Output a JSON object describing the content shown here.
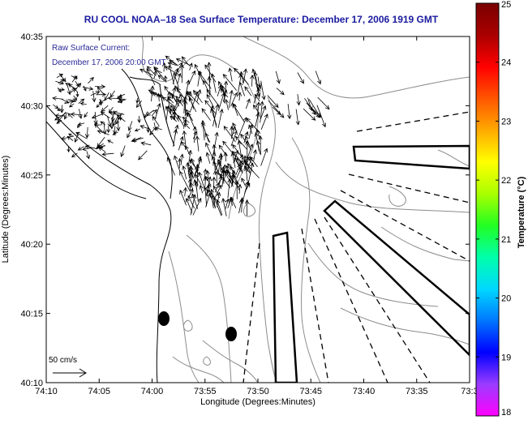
{
  "title": "RU COOL  NOAA–18  Sea Surface Temperature:  December 17, 2006 1919 GMT",
  "annotations": {
    "current_label_line1": "Raw Surface Current:",
    "current_label_line2": "December 17, 2006 20:00 GMT",
    "scale_label": "50 cm/s"
  },
  "axes": {
    "xlabel": "Longitude (Degrees:Minutes)",
    "ylabel": "Latitude (Degrees:Minutes)",
    "x_ticks": [
      "74:10",
      "74:05",
      "74:00",
      "73:55",
      "73:50",
      "73:45",
      "73:40",
      "73:35",
      "73:3"
    ],
    "y_ticks": [
      "40:35",
      "40:30",
      "40:25",
      "40:20",
      "40:15",
      "40:10"
    ]
  },
  "colorbar": {
    "label": "Temperature (°C)",
    "ticks": [
      "25",
      "24",
      "23",
      "22",
      "21",
      "20",
      "19",
      "18"
    ],
    "range": [
      18,
      25
    ],
    "colors": [
      "#ff00ff",
      "#9a3cff",
      "#0000ff",
      "#0077ff",
      "#00d8ff",
      "#00ffaa",
      "#22ff22",
      "#aaff00",
      "#ffff00",
      "#ffaa00",
      "#ff5500",
      "#ff0000",
      "#aa0000",
      "#7a0000"
    ]
  },
  "colors": {
    "title": "#1a1aa0",
    "label_blue": "#2a2a9a",
    "frame": "#000000",
    "bathymetry": "#8c8c8c",
    "coast": "#000000"
  }
}
